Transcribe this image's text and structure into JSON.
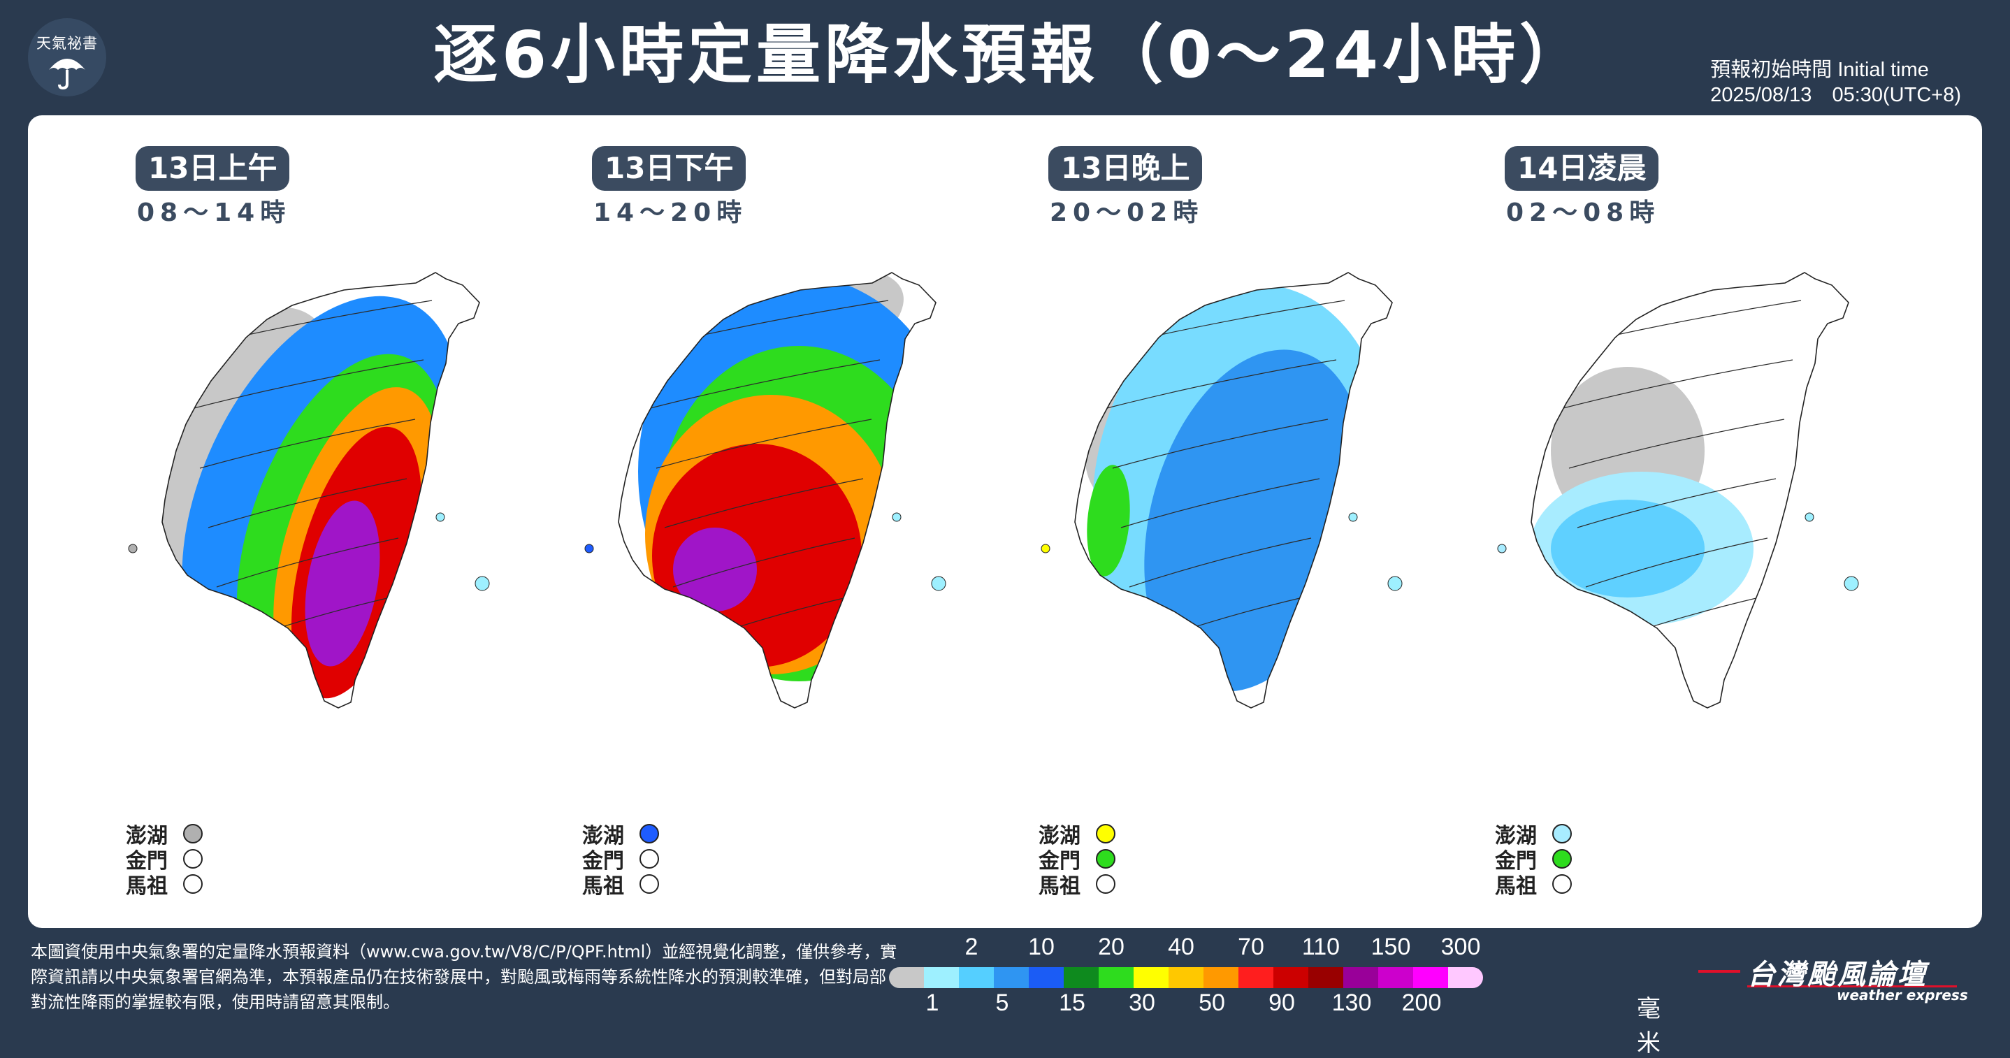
{
  "header": {
    "logo_text": "天氣祕書",
    "logo_icon": "umbrella-icon",
    "title": "逐6小時定量降水預報（0～24小時）",
    "init_label": "預報初始時間 Initial time",
    "init_value": "2025/08/13　05:30(UTC+8)"
  },
  "panels": [
    {
      "period": "13日上午",
      "range": "08～14時",
      "rain_zones": [
        {
          "range_mm": "1-2",
          "color": "#c8c8c8"
        },
        {
          "range_mm": "5-15",
          "color": "#1e8cff"
        },
        {
          "range_mm": "20-40",
          "color": "#2edc1e"
        },
        {
          "range_mm": "50-70",
          "color": "#ff9900"
        },
        {
          "range_mm": "90-130",
          "color": "#e00000"
        },
        {
          "range_mm": "150-200",
          "color": "#a015c8"
        }
      ],
      "islands": [
        {
          "name": "澎湖",
          "color": "#b0b0b0"
        },
        {
          "name": "金門",
          "color": "#ffffff"
        },
        {
          "name": "馬祖",
          "color": "#ffffff"
        }
      ]
    },
    {
      "period": "13日下午",
      "range": "14～20時",
      "rain_zones": [
        {
          "range_mm": "1-2",
          "color": "#c8c8c8"
        },
        {
          "range_mm": "5-15",
          "color": "#1e8cff"
        },
        {
          "range_mm": "20-40",
          "color": "#2edc1e"
        },
        {
          "range_mm": "50-70",
          "color": "#ff9900"
        },
        {
          "range_mm": "90-130",
          "color": "#e00000"
        },
        {
          "range_mm": "150-200",
          "color": "#a015c8"
        }
      ],
      "islands": [
        {
          "name": "澎湖",
          "color": "#1e5cff"
        },
        {
          "name": "金門",
          "color": "#ffffff"
        },
        {
          "name": "馬祖",
          "color": "#ffffff"
        }
      ]
    },
    {
      "period": "13日晚上",
      "range": "20～02時",
      "rain_zones": [
        {
          "range_mm": "1-2",
          "color": "#c8c8c8"
        },
        {
          "range_mm": "2-5",
          "color": "#78dcff"
        },
        {
          "range_mm": "5-15",
          "color": "#2f95f2"
        },
        {
          "range_mm": "20-30",
          "color": "#2edc1e"
        }
      ],
      "islands": [
        {
          "name": "澎湖",
          "color": "#ffff00"
        },
        {
          "name": "金門",
          "color": "#2edc1e"
        },
        {
          "name": "馬祖",
          "color": "#ffffff"
        }
      ]
    },
    {
      "period": "14日凌晨",
      "range": "02～08時",
      "rain_zones": [
        {
          "range_mm": "1-2",
          "color": "#c8c8c8"
        },
        {
          "range_mm": "2-5",
          "color": "#a8ecff"
        },
        {
          "range_mm": "5-10",
          "color": "#5fd0ff"
        }
      ],
      "islands": [
        {
          "name": "澎湖",
          "color": "#a8ecff"
        },
        {
          "name": "金門",
          "color": "#2edc1e"
        },
        {
          "name": "馬祖",
          "color": "#ffffff"
        }
      ]
    }
  ],
  "legend": {
    "colors": [
      "#c8c8c8",
      "#9ef0ff",
      "#55cfff",
      "#2f95f2",
      "#1b5cf5",
      "#0e8a1e",
      "#2edc1e",
      "#ffff00",
      "#ffc800",
      "#ff9900",
      "#ff1e1e",
      "#cc0000",
      "#990000",
      "#990099",
      "#cc00cc",
      "#ff00ff",
      "#ffc8ff"
    ],
    "top_ticks": [
      "2",
      "10",
      "20",
      "40",
      "70",
      "110",
      "150",
      "300"
    ],
    "bottom_ticks": [
      "1",
      "5",
      "15",
      "30",
      "50",
      "90",
      "130",
      "200"
    ],
    "unit": "毫米"
  },
  "footer": {
    "disclaimer": "本圖資使用中央氣象署的定量降水預報資料（www.cwa.gov.tw/V8/C/P/QPF.html）並經視覺化調整，僅供參考，實際資訊請以中央氣象署官網為準，本預報產品仍在技術發展中，對颱風或梅雨等系統性降水的預測較準確，但對局部對流性降雨的掌握較有限，使用時請留意其限制。",
    "brand_name": "台灣颱風論壇",
    "brand_sub": "weather express"
  }
}
